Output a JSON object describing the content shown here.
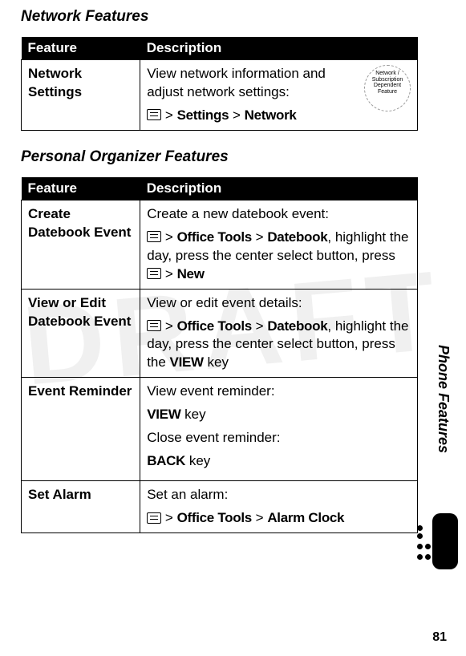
{
  "watermark": "DRAFT",
  "sections": [
    {
      "title": "Network Features",
      "headers": [
        "Feature",
        "Description"
      ],
      "rows": [
        {
          "feature": "Network Settings",
          "show_badge": true,
          "desc_lines": [
            {
              "text": "View network information and adjust network settings:"
            }
          ],
          "menu_path": [
            "Settings",
            "Network"
          ]
        }
      ]
    },
    {
      "title": "Personal Organizer Features",
      "headers": [
        "Feature",
        "Description"
      ],
      "rows": [
        {
          "feature": "Create Datebook Event",
          "desc_lines": [
            {
              "text": "Create a new datebook event:"
            }
          ],
          "menu_path": [
            "Office Tools",
            "Datebook"
          ],
          "menu_suffix": ", highlight the day, press the center select button, press ",
          "menu_suffix_icon": true,
          "menu_suffix_bold": "New"
        },
        {
          "feature": "View or Edit Datebook Event",
          "desc_lines": [
            {
              "text": "View or edit event details:"
            }
          ],
          "menu_path": [
            "Office Tools",
            "Datebook"
          ],
          "menu_suffix": ", highlight the day, press the center select button, press the ",
          "menu_suffix_bold": "VIEW",
          "menu_suffix_tail": " key"
        },
        {
          "feature": "Event Reminder",
          "desc_blocks": [
            {
              "plain": "View event reminder:"
            },
            {
              "boldkey": "VIEW",
              "tail": " key"
            },
            {
              "plain": "Close event reminder:"
            },
            {
              "boldkey": "BACK",
              "tail": " key"
            }
          ]
        },
        {
          "feature": "Set Alarm",
          "desc_lines": [
            {
              "text": "Set an alarm:"
            }
          ],
          "menu_path": [
            "Office Tools",
            "Alarm Clock"
          ]
        }
      ]
    }
  ],
  "side_label": "Phone Features",
  "page_number": "81",
  "badge_text": "Network / Subscription Dependent Feature"
}
